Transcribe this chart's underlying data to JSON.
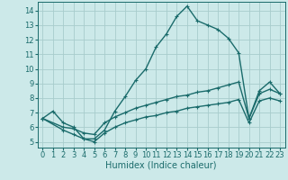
{
  "xlabel": "Humidex (Indice chaleur)",
  "xlim": [
    -0.5,
    23.5
  ],
  "ylim": [
    4.6,
    14.6
  ],
  "xticks": [
    0,
    1,
    2,
    3,
    4,
    5,
    6,
    7,
    8,
    9,
    10,
    11,
    12,
    13,
    14,
    15,
    16,
    17,
    18,
    19,
    20,
    21,
    22,
    23
  ],
  "yticks": [
    5,
    6,
    7,
    8,
    9,
    10,
    11,
    12,
    13,
    14
  ],
  "bg_color": "#cce9e9",
  "grid_color": "#a8cccc",
  "line_color": "#1a6b6b",
  "line1_x": [
    0,
    1,
    2,
    3,
    4,
    5,
    6,
    7,
    8,
    9,
    10,
    11,
    12,
    13,
    14,
    15,
    16,
    17,
    18,
    19,
    20,
    21,
    22,
    23
  ],
  "line1_y": [
    6.6,
    7.1,
    6.3,
    6.0,
    5.2,
    5.2,
    5.8,
    7.1,
    8.1,
    9.2,
    10.0,
    11.5,
    12.4,
    13.6,
    14.3,
    13.3,
    13.0,
    12.7,
    12.1,
    11.1,
    6.6,
    8.5,
    9.1,
    8.3
  ],
  "line2_x": [
    0,
    2,
    3,
    4,
    5,
    6,
    7,
    8,
    9,
    10,
    11,
    12,
    13,
    14,
    15,
    16,
    17,
    18,
    19,
    20,
    21,
    22,
    23
  ],
  "line2_y": [
    6.6,
    6.0,
    5.9,
    5.6,
    5.5,
    6.3,
    6.7,
    7.0,
    7.3,
    7.5,
    7.7,
    7.9,
    8.1,
    8.2,
    8.4,
    8.5,
    8.7,
    8.9,
    9.1,
    6.6,
    8.3,
    8.6,
    8.3
  ],
  "line3_x": [
    0,
    2,
    3,
    4,
    5,
    6,
    7,
    8,
    9,
    10,
    11,
    12,
    13,
    14,
    15,
    16,
    17,
    18,
    19,
    20,
    21,
    22,
    23
  ],
  "line3_y": [
    6.6,
    5.8,
    5.5,
    5.2,
    5.0,
    5.6,
    6.0,
    6.3,
    6.5,
    6.7,
    6.8,
    7.0,
    7.1,
    7.3,
    7.4,
    7.5,
    7.6,
    7.7,
    7.9,
    6.3,
    7.8,
    8.0,
    7.8
  ],
  "linewidth": 1.0,
  "markersize": 3.5,
  "tick_fontsize": 6,
  "label_fontsize": 7
}
